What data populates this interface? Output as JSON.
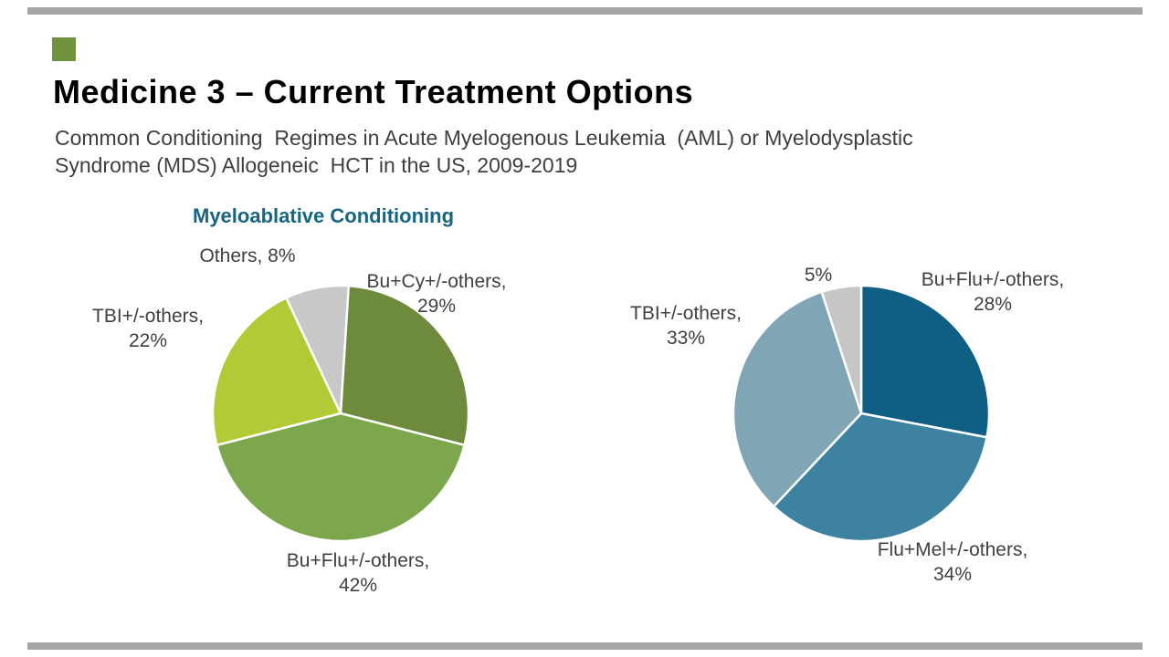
{
  "slide": {
    "title": "Medicine 3 – Current Treatment Options",
    "subtitle": "Common Conditioning  Regimes in Acute Myelogenous Leukemia  (AML) or Myelodysplastic\nSyndrome (MDS) Allogeneic  HCT in the US, 2009-2019",
    "accent_color": "#71923d",
    "divider_color": "#a6a6a6",
    "title_color": "#000000",
    "subtitle_color": "#3f3f3f",
    "label_color": "#404040"
  },
  "chart_data": [
    {
      "type": "pie",
      "title": "Myeloablative Conditioning",
      "title_color": "#166583",
      "legend_position": "none",
      "start_angle_deg": 0,
      "direction": "clockwise",
      "slices": [
        {
          "label": "Bu+Cy+/-others",
          "value": 29,
          "color": "#6e8b3d"
        },
        {
          "label": "Bu+Flu+/-others",
          "value": 42,
          "color": "#7da74c"
        },
        {
          "label": "TBI+/-others",
          "value": 22,
          "color": "#b2ca35"
        },
        {
          "label": "Others",
          "value": 8,
          "color": "#c8c8c8"
        }
      ],
      "labels": [
        {
          "text": "Bu+Cy+/-others,\n29%"
        },
        {
          "text": "Bu+Flu+/-others,\n42%"
        },
        {
          "text": "TBI+/-others,\n22%"
        },
        {
          "text": "Others, 8%"
        }
      ]
    },
    {
      "type": "pie",
      "title": "",
      "legend_position": "none",
      "start_angle_deg": 0,
      "direction": "clockwise",
      "slices": [
        {
          "label": "Bu+Flu+/-others",
          "value": 28,
          "color": "#0f5e84"
        },
        {
          "label": "Flu+Mel+/-others",
          "value": 34,
          "color": "#3d83a1"
        },
        {
          "label": "TBI+/-others",
          "value": 33,
          "color": "#80a6b6"
        },
        {
          "label": "",
          "value": 5,
          "color": "#c6c6c6"
        }
      ],
      "labels": [
        {
          "text": "Bu+Flu+/-others,\n28%"
        },
        {
          "text": "Flu+Mel+/-others,\n34%"
        },
        {
          "text": "TBI+/-others,\n33%"
        },
        {
          "text": "5%"
        }
      ]
    }
  ]
}
